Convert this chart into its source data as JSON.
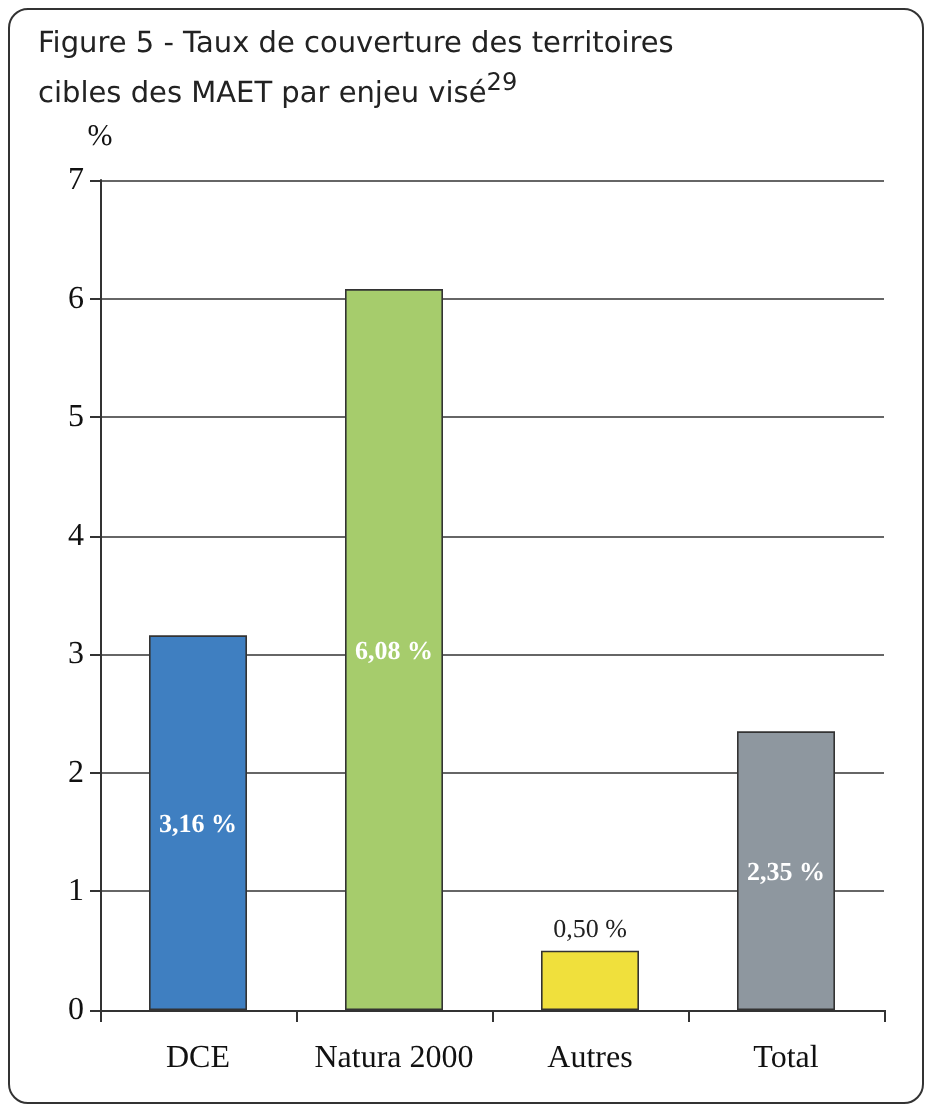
{
  "chart_data": {
    "type": "bar",
    "title": "Figure 5 - Taux de couverture des territoires cibles des MAET par enjeu visé$^{29}$",
    "ylabel": "%",
    "categories": [
      "DCE",
      "Natura 2000",
      "Autres",
      "Total"
    ],
    "values": [
      3.16,
      6.08,
      0.5,
      2.35
    ],
    "colors": [
      "#3f7fc1",
      "#a6cc6c",
      "#f0e03c",
      "#8e979f"
    ],
    "value_labels": [
      "3,16 %",
      "6,08 %",
      "0,50 %",
      "2,35 %"
    ],
    "ylim": [
      0,
      7
    ],
    "yticks": [
      0,
      1,
      2,
      3,
      4,
      5,
      6,
      7
    ],
    "grid": "y"
  }
}
